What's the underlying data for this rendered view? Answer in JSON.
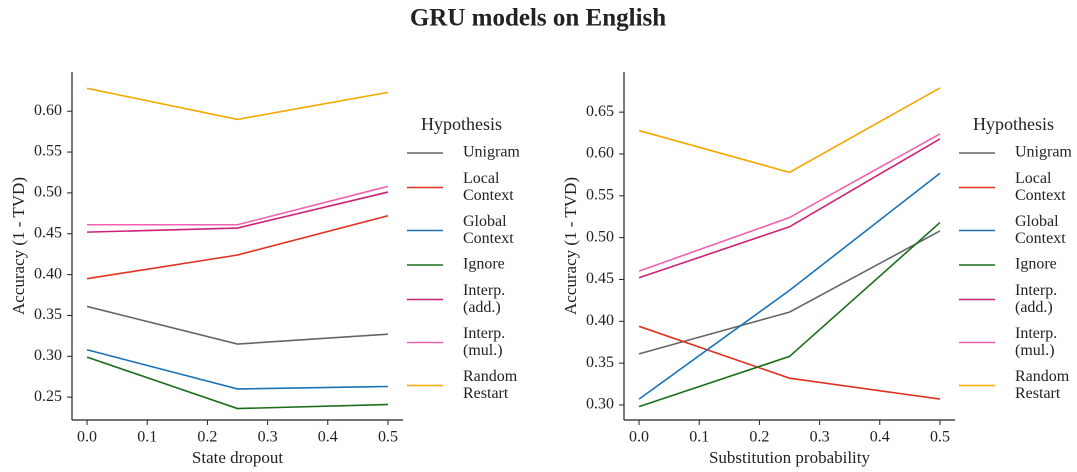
{
  "title": "GRU models on English",
  "chart_data": [
    {
      "type": "line",
      "xlabel": "State dropout",
      "ylabel": "Accuracy (1 - TVD)",
      "legend_title": "Hypothesis",
      "legend": "right",
      "x": [
        0,
        0.25,
        0.5
      ],
      "xlim": [
        -0.025,
        0.525
      ],
      "xticks": [
        {
          "value": 0,
          "label": "0.0"
        },
        0.1,
        0.2,
        0.3,
        0.4,
        0.5
      ],
      "ylim": [
        0.222,
        0.648
      ],
      "yticks": [
        0.25,
        {
          "value": 0.3,
          "label": "0.30"
        },
        0.35,
        {
          "value": 0.4,
          "label": "0.40"
        },
        0.45,
        {
          "value": 0.5,
          "label": "0.50"
        },
        0.55,
        {
          "value": 0.6,
          "label": "0.60"
        }
      ],
      "series": [
        {
          "name": "Unigram",
          "color": "#666666",
          "values": [
            0.361,
            0.315,
            0.327
          ]
        },
        {
          "name": "Local\nContext",
          "color": "#e0301e",
          "values": [
            0.395,
            0.424,
            0.472
          ]
        },
        {
          "name": "Global\nContext",
          "color": "#1a73b8",
          "values": [
            0.308,
            0.26,
            0.263
          ]
        },
        {
          "name": "Ignore",
          "color": "#1a6e1a",
          "values": [
            0.299,
            0.236,
            0.241
          ]
        },
        {
          "name": "Interp.\n(add.)",
          "color": "#cc2277",
          "values": [
            0.452,
            0.457,
            0.501
          ]
        },
        {
          "name": "Interp.\n(mul.)",
          "color": "#f062b0",
          "values": [
            0.461,
            0.461,
            0.508
          ]
        },
        {
          "name": "Random\nRestart",
          "color": "#f5a800",
          "values": [
            0.628,
            0.59,
            0.623
          ]
        }
      ]
    },
    {
      "type": "line",
      "xlabel": "Substitution probability",
      "ylabel": "Accuracy (1 - TVD)",
      "legend_title": "Hypothesis",
      "legend": "right",
      "x": [
        0,
        0.25,
        0.5
      ],
      "xlim": [
        -0.025,
        0.525
      ],
      "xticks": [
        {
          "value": 0,
          "label": "0.0"
        },
        0.1,
        0.2,
        0.3,
        0.4,
        0.5
      ],
      "ylim": [
        0.282,
        0.698
      ],
      "yticks": [
        {
          "value": 0.3,
          "label": "0.30"
        },
        0.35,
        {
          "value": 0.4,
          "label": "0.40"
        },
        0.45,
        {
          "value": 0.5,
          "label": "0.50"
        },
        0.55,
        {
          "value": 0.6,
          "label": "0.60"
        },
        0.65
      ],
      "series": [
        {
          "name": "Unigram",
          "color": "#666666",
          "values": [
            0.361,
            0.411,
            0.508
          ]
        },
        {
          "name": "Local\nContext",
          "color": "#e0301e",
          "values": [
            0.394,
            0.332,
            0.307
          ]
        },
        {
          "name": "Global\nContext",
          "color": "#1a73b8",
          "values": [
            0.307,
            0.437,
            0.577
          ]
        },
        {
          "name": "Ignore",
          "color": "#1a6e1a",
          "values": [
            0.298,
            0.358,
            0.518
          ]
        },
        {
          "name": "Interp.\n(add.)",
          "color": "#cc2277",
          "values": [
            0.452,
            0.513,
            0.618
          ]
        },
        {
          "name": "Interp.\n(mul.)",
          "color": "#f062b0",
          "values": [
            0.46,
            0.524,
            0.624
          ]
        },
        {
          "name": "Random\nRestart",
          "color": "#f5a800",
          "values": [
            0.628,
            0.578,
            0.679
          ]
        }
      ]
    }
  ]
}
